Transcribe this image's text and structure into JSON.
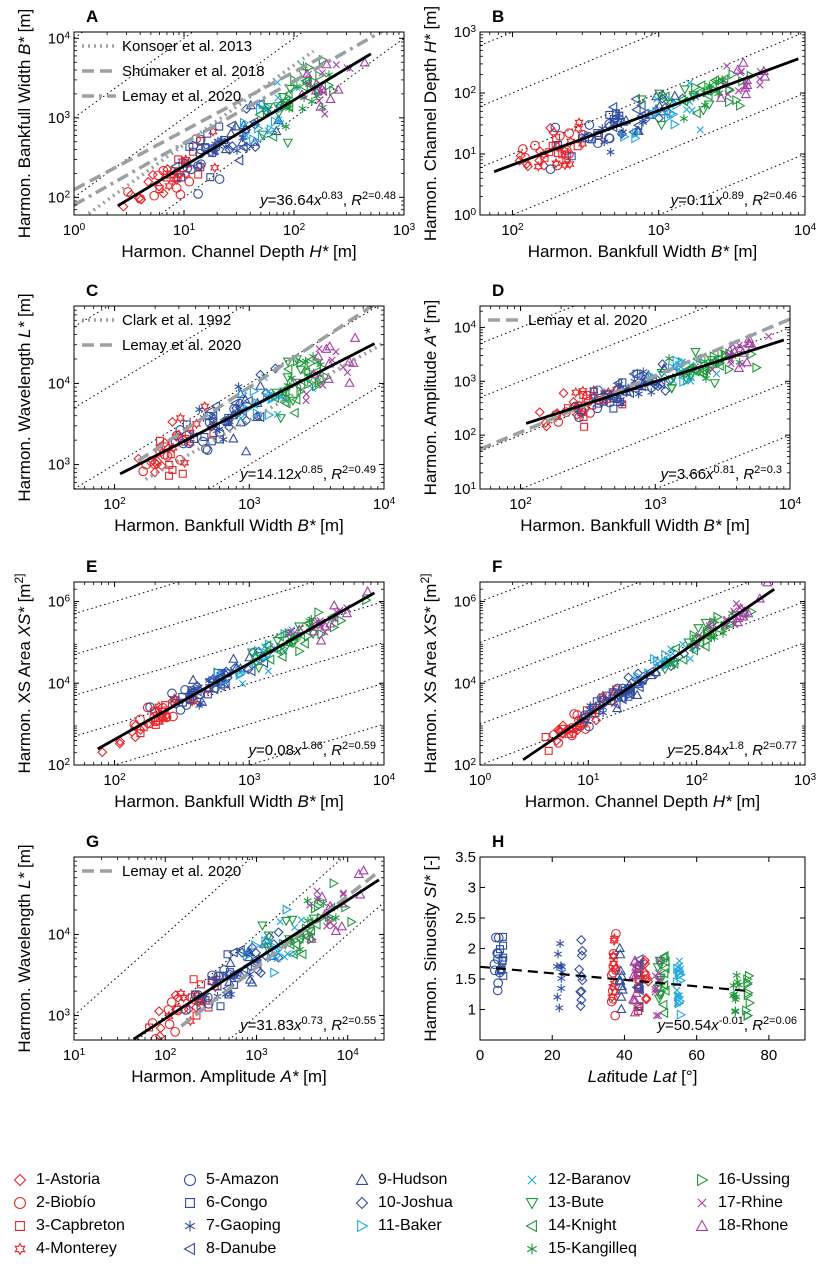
{
  "chart_data": [
    {
      "panel": "A",
      "type": "scatter",
      "xscale": "log",
      "yscale": "log",
      "xlim": [
        1,
        1000
      ],
      "ylim": [
        60,
        12000
      ],
      "xticks": [
        1,
        10,
        100,
        1000
      ],
      "xticklabels": [
        "10^0",
        "10^1",
        "10^2",
        "10^3"
      ],
      "yticks": [
        100,
        1000,
        10000
      ],
      "yticklabels": [
        "10^2",
        "10^3",
        "10^4"
      ],
      "xlabel": "Harmon. Channel Depth H* [m]",
      "ylabel": "Harmon. Bankfull Width B* [m]",
      "fit": {
        "a": 36.64,
        "b": 0.83,
        "xrange": [
          2.5,
          500
        ],
        "label": "y=36.64x^0.83, R^2=0.48"
      },
      "ref_lines": [
        {
          "name": "Konsoer et al. 2013",
          "a": 46,
          "b": 1.0,
          "xrange": [
            1,
            150
          ],
          "style": "dotted"
        },
        {
          "name": "Shumaker et al. 2018",
          "a": 125,
          "b": 0.74,
          "xrange": [
            1,
            200
          ],
          "style": "dashed"
        },
        {
          "name": "Lemay et al. 2020",
          "a": 80,
          "b": 0.78,
          "xrange": [
            1,
            1000
          ],
          "style": "dashdot"
        }
      ],
      "diagonal_ratios": [
        10,
        100,
        1000,
        10000
      ]
    },
    {
      "panel": "B",
      "type": "scatter",
      "xscale": "log",
      "yscale": "log",
      "xlim": [
        60,
        10000
      ],
      "ylim": [
        1,
        1000
      ],
      "xticks": [
        100,
        1000,
        10000
      ],
      "xticklabels": [
        "10^2",
        "10^3",
        "10^4"
      ],
      "yticks": [
        1,
        10,
        100,
        1000
      ],
      "yticklabels": [
        "10^0",
        "10^1",
        "10^2",
        "10^3"
      ],
      "xlabel": "Harmon. Bankfull Width B* [m]",
      "ylabel": "Harmon. Channel Depth H* [m]",
      "fit": {
        "a": 0.11,
        "b": 0.89,
        "xrange": [
          75,
          9000
        ],
        "label": "y=0.11x^0.89, R^2=0.46"
      },
      "ref_lines": [],
      "diagonal_ratios": [
        0.001,
        0.01,
        0.1,
        1,
        10
      ]
    },
    {
      "panel": "C",
      "type": "scatter",
      "xscale": "log",
      "yscale": "log",
      "xlim": [
        50,
        10000
      ],
      "ylim": [
        500,
        90000
      ],
      "xticks": [
        100,
        1000,
        10000
      ],
      "xticklabels": [
        "10^2",
        "10^3",
        "10^4"
      ],
      "yticks": [
        1000,
        10000
      ],
      "yticklabels": [
        "10^3",
        "10^4"
      ],
      "xlabel": "Harmon. Bankfull Width B* [m]",
      "ylabel": "Harmon. Wavelength L* [m]",
      "fit": {
        "a": 14.12,
        "b": 0.85,
        "xrange": [
          110,
          8500
        ],
        "label": "y=14.12x^0.85, R^2=0.49"
      },
      "ref_lines": [
        {
          "name": "Clark et al. 1992",
          "a": 5,
          "b": 0.95,
          "xrange": [
            170,
            10000
          ],
          "style": "dotted"
        },
        {
          "name": "Lemay et al. 2020",
          "a": 4.5,
          "b": 1.1,
          "xrange": [
            150,
            10000
          ],
          "style": "dashed"
        }
      ],
      "diagonal_ratios": [
        1,
        10,
        100,
        1000
      ]
    },
    {
      "panel": "D",
      "type": "scatter",
      "xscale": "log",
      "yscale": "log",
      "xlim": [
        50,
        10000
      ],
      "ylim": [
        10,
        25000
      ],
      "xticks": [
        100,
        1000,
        10000
      ],
      "xticklabels": [
        "10^2",
        "10^3",
        "10^4"
      ],
      "yticks": [
        10,
        100,
        1000,
        10000
      ],
      "yticklabels": [
        "10^1",
        "10^2",
        "10^3",
        "10^4"
      ],
      "xlabel": "Harmon. Bankfull Width B* [m]",
      "ylabel": "Harmon. Amplitude A* [m]",
      "fit": {
        "a": 3.66,
        "b": 0.81,
        "xrange": [
          110,
          9000
        ],
        "label": "y=3.66x^0.81, R^2=0.3"
      },
      "ref_lines": [
        {
          "name": "Lemay et al. 2020",
          "a": 0.9,
          "b": 1.05,
          "xrange": [
            50,
            10000
          ],
          "style": "dashed"
        }
      ],
      "diagonal_ratios": [
        0.01,
        0.1,
        1,
        10,
        100
      ]
    },
    {
      "panel": "E",
      "type": "scatter",
      "xscale": "log",
      "yscale": "log",
      "xlim": [
        50,
        10000
      ],
      "ylim": [
        100,
        3000000
      ],
      "xticks": [
        100,
        1000,
        10000
      ],
      "xticklabels": [
        "10^2",
        "10^3",
        "10^4"
      ],
      "yticks": [
        100,
        10000,
        1000000
      ],
      "yticklabels": [
        "10^2",
        "10^4",
        "10^6"
      ],
      "xlabel": "Harmon. Bankfull Width B* [m]",
      "ylabel": "Harmon. XS Area XS* [m^2]",
      "fit": {
        "a": 0.08,
        "b": 1.86,
        "xrange": [
          75,
          8500
        ],
        "label": "y=0.08x^1.86, R^2=0.59"
      },
      "ref_lines": [],
      "diagonal_ratios": [
        0.1,
        1,
        10,
        100,
        1000,
        10000
      ]
    },
    {
      "panel": "F",
      "type": "scatter",
      "xscale": "log",
      "yscale": "log",
      "xlim": [
        1,
        1000
      ],
      "ylim": [
        100,
        3000000
      ],
      "xticks": [
        1,
        10,
        100,
        1000
      ],
      "xticklabels": [
        "10^0",
        "10^1",
        "10^2",
        "10^3"
      ],
      "yticks": [
        100,
        10000,
        1000000
      ],
      "yticklabels": [
        "10^2",
        "10^4",
        "10^6"
      ],
      "xlabel": "Harmon. Channel Depth H* [m]",
      "ylabel": "Harmon. XS Area XS* [m^2]",
      "fit": {
        "a": 25.84,
        "b": 1.8,
        "xrange": [
          2.5,
          520
        ],
        "label": "y=25.84x^1.8, R^2=0.77"
      },
      "ref_lines": [],
      "diagonal_ratios": [
        100,
        1000,
        10000,
        100000,
        1000000,
        10000000
      ]
    },
    {
      "panel": "G",
      "type": "scatter",
      "xscale": "log",
      "yscale": "log",
      "xlim": [
        10,
        25000
      ],
      "ylim": [
        500,
        90000
      ],
      "xticks": [
        10,
        100,
        1000,
        10000
      ],
      "xticklabels": [
        "10^1",
        "10^2",
        "10^3",
        "10^4"
      ],
      "yticks": [
        1000,
        10000
      ],
      "yticklabels": [
        "10^3",
        "10^4"
      ],
      "xlabel": "Harmon. Amplitude A* [m]",
      "ylabel": "Harmon. Wavelength L* [m]",
      "fit": {
        "a": 31.83,
        "b": 0.73,
        "xrange": [
          45,
          22000
        ],
        "label": "y=31.83x^0.73, R^2=0.55"
      },
      "ref_lines": [
        {
          "name": "Lemay et al. 2020",
          "a": 9,
          "b": 0.88,
          "xrange": [
            150,
            20000
          ],
          "style": "dashed"
        }
      ],
      "diagonal_ratios": [
        1,
        10,
        100
      ]
    },
    {
      "panel": "H",
      "type": "scatter",
      "xscale": "linear",
      "yscale": "linear",
      "xlim": [
        0,
        90
      ],
      "ylim": [
        0.5,
        3.5
      ],
      "xticks": [
        0,
        20,
        40,
        60,
        80
      ],
      "xticklabels": [
        "0",
        "20",
        "40",
        "60",
        "80"
      ],
      "yticks": [
        1,
        1.5,
        2,
        2.5,
        3,
        3.5
      ],
      "yticklabels": [
        "1",
        "1.5",
        "2",
        "2.5",
        "3",
        "3.5"
      ],
      "xlabel": "Latitude Lat [°]",
      "ylabel": "Harmon. Sinuosity SI* [-]",
      "fit": {
        "a": 50.54,
        "b": -0.01,
        "xrange": [
          0,
          75
        ],
        "label": "y=50.54x^-0.01, R^2=0.06",
        "note": "plotted trend falls from 1.70 at Lat=0 to 1.30 at Lat=75"
      },
      "ref_lines": [],
      "diagonal_ratios": [],
      "series_latitude": {
        "1-Astoria": 46,
        "2-Biobío": 37,
        "3-Capbreton": 44,
        "4-Monterey": 37,
        "5-Amazon": 5,
        "6-Congo": 6,
        "7-Gaoping": 22,
        "8-Danube": 44,
        "9-Hudson": 39,
        "10-Joshua": 28,
        "11-Baker": 55,
        "12-Baranov": 55,
        "13-Bute": 50,
        "14-Knight": 51,
        "15-Kangilleq": 71,
        "16-Ussing": 74,
        "17-Rhine": 49,
        "18-Rhone": 43
      }
    }
  ],
  "panel_letters": [
    "A",
    "B",
    "C",
    "D",
    "E",
    "F",
    "G",
    "H"
  ],
  "legend": [
    {
      "label": "1-Astoria",
      "color": "#e8262b",
      "marker": "diamond"
    },
    {
      "label": "2-Biobío",
      "color": "#e8262b",
      "marker": "circle"
    },
    {
      "label": "3-Capbreton",
      "color": "#e8262b",
      "marker": "square"
    },
    {
      "label": "4-Monterey",
      "color": "#e8262b",
      "marker": "hexagram"
    },
    {
      "label": "5-Amazon",
      "color": "#2f4ea2",
      "marker": "circle"
    },
    {
      "label": "6-Congo",
      "color": "#2f4ea2",
      "marker": "square"
    },
    {
      "label": "7-Gaoping",
      "color": "#2f4ea2",
      "marker": "asterisk"
    },
    {
      "label": "8-Danube",
      "color": "#2f4ea2",
      "marker": "tri-left"
    },
    {
      "label": "9-Hudson",
      "color": "#2f4ea2",
      "marker": "tri-up"
    },
    {
      "label": "10-Joshua",
      "color": "#2f4ea2",
      "marker": "diamond"
    },
    {
      "label": "11-Baker",
      "color": "#22a8e0",
      "marker": "tri-right"
    },
    {
      "label": "12-Baranov",
      "color": "#22a8e0",
      "marker": "x"
    },
    {
      "label": "13-Bute",
      "color": "#1e9a3a",
      "marker": "tri-down"
    },
    {
      "label": "14-Knight",
      "color": "#1e9a3a",
      "marker": "tri-left"
    },
    {
      "label": "15-Kangilleq",
      "color": "#1e9a3a",
      "marker": "asterisk"
    },
    {
      "label": "16-Ussing",
      "color": "#1e9a3a",
      "marker": "tri-right"
    },
    {
      "label": "17-Rhine",
      "color": "#a63fa8",
      "marker": "x"
    },
    {
      "label": "18-Rhone",
      "color": "#a63fa8",
      "marker": "tri-up"
    }
  ],
  "colors": {
    "fit": "#000000",
    "ref": "#9aa0a3",
    "diag": "#000000"
  }
}
